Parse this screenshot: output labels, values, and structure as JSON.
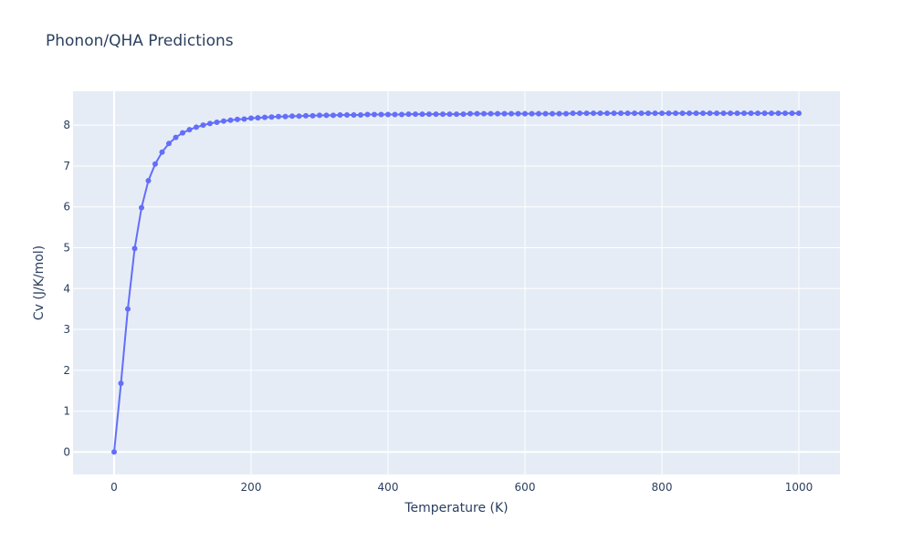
{
  "chart_data": {
    "type": "line",
    "title": "Phonon/QHA Predictions",
    "xlabel": "Temperature (K)",
    "ylabel": "Cv (J/K/mol)",
    "xlim": [
      -60,
      1060
    ],
    "ylim": [
      -0.55,
      8.83
    ],
    "x_ticks": [
      0,
      200,
      400,
      600,
      800,
      1000
    ],
    "x_tick_labels": [
      "0",
      "200",
      "400",
      "600",
      "800",
      "1000"
    ],
    "y_ticks": [
      0,
      1,
      2,
      3,
      4,
      5,
      6,
      7,
      8
    ],
    "y_tick_labels": [
      "0",
      "1",
      "2",
      "3",
      "4",
      "5",
      "6",
      "7",
      "8"
    ],
    "grid": true,
    "legend": "none",
    "colors": {
      "series": "#636efa",
      "plot_bg": "#e5ecf6",
      "grid": "#ffffff",
      "text": "#2a3f5f"
    },
    "series": [
      {
        "mode": "lines+markers",
        "x": [
          0,
          10,
          20,
          30,
          40,
          50,
          60,
          70,
          80,
          90,
          100,
          110,
          120,
          130,
          140,
          150,
          160,
          170,
          180,
          190,
          200,
          210,
          220,
          230,
          240,
          250,
          260,
          270,
          280,
          290,
          300,
          310,
          320,
          330,
          340,
          350,
          360,
          370,
          380,
          390,
          400,
          410,
          420,
          430,
          440,
          450,
          460,
          470,
          480,
          490,
          500,
          510,
          520,
          530,
          540,
          550,
          560,
          570,
          580,
          590,
          600,
          610,
          620,
          630,
          640,
          650,
          660,
          670,
          680,
          690,
          700,
          710,
          720,
          730,
          740,
          750,
          760,
          770,
          780,
          790,
          800,
          810,
          820,
          830,
          840,
          850,
          860,
          870,
          880,
          890,
          900,
          910,
          920,
          930,
          940,
          950,
          960,
          970,
          980,
          990,
          1000
        ],
        "y": [
          0,
          1.68,
          3.5,
          4.98,
          5.98,
          6.64,
          7.05,
          7.34,
          7.55,
          7.7,
          7.81,
          7.89,
          7.95,
          8.0,
          8.04,
          8.07,
          8.1,
          8.12,
          8.14,
          8.15,
          8.17,
          8.18,
          8.19,
          8.2,
          8.21,
          8.21,
          8.22,
          8.22,
          8.23,
          8.23,
          8.24,
          8.24,
          8.24,
          8.25,
          8.25,
          8.25,
          8.25,
          8.26,
          8.26,
          8.26,
          8.26,
          8.26,
          8.26,
          8.27,
          8.27,
          8.27,
          8.27,
          8.27,
          8.27,
          8.27,
          8.27,
          8.27,
          8.28,
          8.28,
          8.28,
          8.28,
          8.28,
          8.28,
          8.28,
          8.28,
          8.28,
          8.28,
          8.28,
          8.28,
          8.28,
          8.28,
          8.28,
          8.29,
          8.29,
          8.29,
          8.29,
          8.29,
          8.29,
          8.29,
          8.29,
          8.29,
          8.29,
          8.29,
          8.29,
          8.29,
          8.29,
          8.29,
          8.29,
          8.29,
          8.29,
          8.29,
          8.29,
          8.29,
          8.29,
          8.29,
          8.29,
          8.29,
          8.29,
          8.29,
          8.29,
          8.29,
          8.29,
          8.29,
          8.29,
          8.29,
          8.29
        ]
      }
    ]
  }
}
